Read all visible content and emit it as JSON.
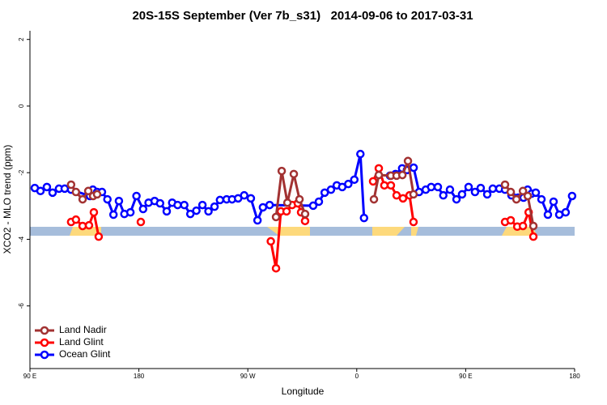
{
  "chart_data": {
    "type": "line",
    "title": "20S-15S September (Ver 7b_s31)   2014-09-06 to 2017-03-31",
    "xlabel": "Longitude",
    "ylabel": "XCO2 - MLO trend (ppm)",
    "xlim": [
      90,
      540
    ],
    "ylim": [
      -7.88,
      2.26
    ],
    "xticks": [
      {
        "value": 90,
        "label": "90 E"
      },
      180,
      {
        "value": 270,
        "label": "90 W"
      },
      {
        "value": 360,
        "label": "0"
      },
      {
        "value": 450,
        "label": "90 E"
      },
      {
        "value": 540,
        "label": "180"
      }
    ],
    "yticks": [
      2,
      0,
      -2,
      -4,
      -6
    ],
    "legend": "bottom left",
    "series": [
      {
        "name": "Land Nadir",
        "color": "#a23232",
        "x": [
          124,
          128,
          133.5,
          138.2,
          142.2,
          145.5,
          null,
          293.3,
          298,
          302.7,
          308,
          312.7,
          317.3,
          null,
          374.2,
          378.2,
          388.2,
          392.9,
          397.7,
          402.3,
          406.9,
          null,
          482.5,
          487.2,
          491.9,
          497.3,
          501.3,
          505.9
        ],
        "values": [
          -2.36,
          -2.58,
          -2.8,
          -2.55,
          -2.7,
          -2.65,
          null,
          -3.33,
          -1.95,
          -2.9,
          -2.04,
          -2.8,
          -3.24,
          null,
          -2.8,
          -2.07,
          -2.09,
          -2.09,
          -2.07,
          -1.65,
          -2.65,
          null,
          -2.36,
          -2.58,
          -2.8,
          -2.55,
          -2.7,
          -3.6
        ]
      },
      {
        "name": "Land Glint",
        "color": "#ff0000",
        "x": [
          124,
          128,
          133.5,
          138.8,
          142.8,
          146.8,
          null,
          181.6,
          null,
          289,
          293.3,
          297.3,
          302,
          306.6,
          311.3,
          314,
          317.3,
          null,
          373.5,
          378.2,
          382.8,
          388.2,
          392.9,
          398.2,
          403.6,
          406.9,
          null,
          482.5,
          487.2,
          492.6,
          497.3,
          502,
          505.9
        ],
        "values": [
          -3.48,
          -3.41,
          -3.6,
          -3.58,
          -3.19,
          -3.92,
          null,
          -3.48,
          null,
          -4.06,
          -4.87,
          -3.16,
          -3.16,
          -2.97,
          -2.92,
          -3.19,
          -3.45,
          null,
          -2.26,
          -1.87,
          -2.38,
          -2.38,
          -2.68,
          -2.77,
          -2.68,
          -3.48,
          null,
          -3.48,
          -3.43,
          -3.62,
          -3.6,
          -3.19,
          -3.92
        ]
      },
      {
        "name": "Ocean Glint",
        "color": "#0000ff",
        "x": [
          94,
          98.7,
          104,
          108.7,
          114,
          118.7,
          124,
          139.5,
          142,
          145.5,
          149.5,
          154,
          159,
          163.5,
          168,
          173,
          178,
          183.5,
          188,
          193,
          197.5,
          203,
          207.5,
          212,
          217.5,
          222.5,
          227.5,
          232.5,
          237.5,
          242.5,
          247,
          252.5,
          257,
          262,
          267,
          272.5,
          278,
          282.5,
          288,
          324,
          328.7,
          333.5,
          338.7,
          343.5,
          348,
          353,
          358,
          363,
          366,
          null,
          387.5,
          392,
          397.5,
          401.5,
          407,
          411.5,
          417,
          421.5,
          427,
          431.5,
          437,
          442.4,
          447,
          452.4,
          457.7,
          462.4,
          467.8,
          472.4,
          477.8,
          482.5,
          487.8,
          493.2,
          497.8,
          501.2,
          504.5,
          507.9,
          512.6,
          517.9,
          522.6,
          527.3,
          532.6,
          537.9
        ],
        "values": [
          -2.46,
          -2.55,
          -2.43,
          -2.6,
          -2.48,
          -2.48,
          -2.51,
          -2.7,
          -2.51,
          -2.58,
          -2.58,
          -2.8,
          -3.26,
          -2.85,
          -3.24,
          -3.19,
          -2.7,
          -3.09,
          -2.9,
          -2.85,
          -2.92,
          -3.16,
          -2.9,
          -2.97,
          -2.97,
          -3.24,
          -3.14,
          -2.97,
          -3.16,
          -3.02,
          -2.82,
          -2.8,
          -2.8,
          -2.77,
          -2.68,
          -2.77,
          -3.43,
          -3.04,
          -2.97,
          -2.99,
          -2.87,
          -2.6,
          -2.51,
          -2.38,
          -2.43,
          -2.34,
          -2.21,
          -1.44,
          -3.36,
          null,
          -2.09,
          -2.04,
          -1.87,
          -1.92,
          -1.85,
          -2.58,
          -2.51,
          -2.43,
          -2.43,
          -2.68,
          -2.51,
          -2.8,
          -2.65,
          -2.43,
          -2.58,
          -2.46,
          -2.65,
          -2.48,
          -2.48,
          -2.51,
          -2.68,
          -2.75,
          -2.75,
          -2.51,
          -2.63,
          -2.6,
          -2.8,
          -3.26,
          -2.87,
          -3.26,
          -3.19,
          -2.7
        ]
      }
    ]
  }
}
